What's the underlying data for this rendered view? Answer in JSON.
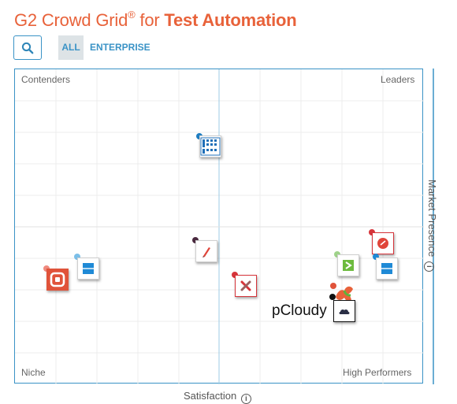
{
  "header": {
    "title_prefix": "G2 Crowd Grid",
    "title_reg": "®",
    "title_for": " for ",
    "title_category": "Test Automation"
  },
  "filters": {
    "all_label": "ALL",
    "enterprise_label": "ENTERPRISE",
    "search_icon": "search-icon"
  },
  "grid": {
    "quadrants": {
      "contenders": "Contenders",
      "leaders": "Leaders",
      "niche": "Niche",
      "high_performers": "High Performers"
    },
    "x_axis_label": "Satisfaction",
    "y_axis_label": "Market Presence",
    "info_glyph": "i"
  },
  "products": {
    "pcloudy_label": "pCloudy"
  },
  "colors": {
    "title_accent": "#e8623a",
    "link_blue": "#3a93c6",
    "grid_line": "#e6e6e6",
    "axis_blue": "#3a93c6"
  }
}
